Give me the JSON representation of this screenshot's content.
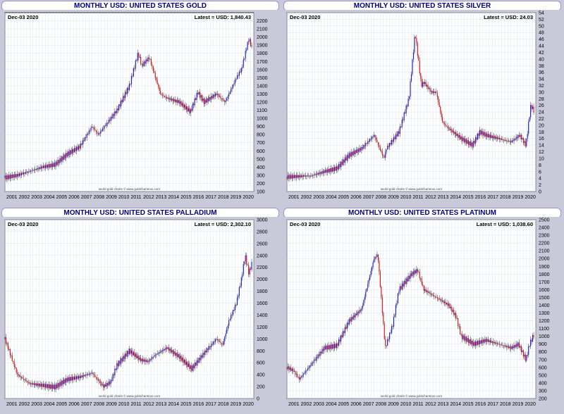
{
  "date_label": "Dec-03  2020",
  "credit": "world gold charts © www.goldchartsrus.com",
  "colors": {
    "up": "#1f1fd6",
    "down": "#e01414",
    "wick": "#333333",
    "grid": "#dde4f2",
    "title": "#000080"
  },
  "chart_data": [
    {
      "type": "line",
      "title": "MONTHLY USD: UNITED STATES GOLD",
      "latest": "Latest = USD: 1,840.43",
      "x_ticks": [
        "2001",
        "2002",
        "2003",
        "2004",
        "2005",
        "2006",
        "2007",
        "2008",
        "2009",
        "2010",
        "2011",
        "2012",
        "2013",
        "2014",
        "2015",
        "2016",
        "2017",
        "2018",
        "2019",
        "2020"
      ],
      "xlim": [
        2001,
        2021
      ],
      "ylim": [
        100,
        2300
      ],
      "y_ticks": [
        100,
        200,
        300,
        400,
        500,
        600,
        700,
        800,
        900,
        1000,
        1100,
        1200,
        1300,
        1400,
        1500,
        1600,
        1700,
        1800,
        1900,
        2000,
        2100,
        2200
      ],
      "x": [
        2001,
        2002,
        2003,
        2004,
        2005,
        2006,
        2007,
        2008,
        2008.5,
        2009,
        2010,
        2011,
        2011.7,
        2012,
        2012.6,
        2013,
        2013.5,
        2014,
        2015,
        2015.9,
        2016.5,
        2017,
        2018,
        2018.7,
        2019,
        2019.6,
        2020,
        2020.6,
        2020.9
      ],
      "values": [
        270,
        300,
        350,
        400,
        430,
        560,
        650,
        900,
        800,
        900,
        1100,
        1400,
        1800,
        1650,
        1750,
        1550,
        1300,
        1250,
        1200,
        1080,
        1320,
        1200,
        1300,
        1200,
        1300,
        1500,
        1600,
        1980,
        1840
      ]
    },
    {
      "type": "line",
      "title": "MONTHLY USD: UNITED STATES SILVER",
      "latest": "Latest = USD: 24.03",
      "x_ticks": [
        "2001",
        "2002",
        "2003",
        "2004",
        "2005",
        "2006",
        "2007",
        "2008",
        "2009",
        "2010",
        "2011",
        "2012",
        "2013",
        "2014",
        "2015",
        "2016",
        "2017",
        "2018",
        "2019",
        "2020"
      ],
      "xlim": [
        2001,
        2021
      ],
      "ylim": [
        0,
        54
      ],
      "y_ticks": [
        0,
        2,
        4,
        6,
        8,
        10,
        12,
        14,
        16,
        18,
        20,
        22,
        24,
        26,
        28,
        30,
        32,
        34,
        36,
        38,
        40,
        42,
        44,
        46,
        48,
        50,
        52,
        54
      ],
      "x": [
        2001,
        2002,
        2003,
        2004,
        2005,
        2006,
        2007,
        2008,
        2008.8,
        2009,
        2010,
        2010.8,
        2011.3,
        2011.8,
        2012,
        2012.6,
        2013,
        2013.5,
        2014,
        2015,
        2015.9,
        2016.5,
        2017,
        2018,
        2019,
        2019.7,
        2020.2,
        2020.6,
        2020.9
      ],
      "values": [
        4.4,
        4.6,
        4.8,
        6,
        7,
        11,
        13,
        17,
        10,
        13,
        18,
        28,
        48,
        32,
        33,
        30,
        30,
        21,
        19,
        16,
        14,
        18,
        17,
        16,
        15,
        17,
        14,
        26,
        24
      ]
    },
    {
      "type": "line",
      "title": "MONTHLY USD: UNITED STATES PALLADIUM",
      "latest": "Latest = USD: 2,302.10",
      "x_ticks": [
        "2001",
        "2002",
        "2003",
        "2004",
        "2005",
        "2006",
        "2007",
        "2008",
        "2009",
        "2010",
        "2011",
        "2012",
        "2013",
        "2014",
        "2015",
        "2016",
        "2017",
        "2018",
        "2019",
        "2020"
      ],
      "xlim": [
        2001,
        2021
      ],
      "ylim": [
        0,
        3000
      ],
      "y_ticks": [
        0,
        200,
        400,
        600,
        800,
        1000,
        1200,
        1400,
        1600,
        1800,
        2000,
        2200,
        2400,
        2600,
        2800,
        3000
      ],
      "x": [
        2001,
        2001.5,
        2002,
        2003,
        2004,
        2005,
        2006,
        2007,
        2008,
        2008.9,
        2009.5,
        2010,
        2011,
        2011.9,
        2012.5,
        2013,
        2014,
        2015,
        2016,
        2017,
        2018,
        2018.5,
        2019,
        2019.6,
        2020,
        2020.3,
        2020.6,
        2020.9
      ],
      "values": [
        1000,
        700,
        400,
        250,
        220,
        190,
        320,
        360,
        430,
        200,
        280,
        560,
        800,
        650,
        620,
        720,
        850,
        700,
        500,
        760,
        1000,
        900,
        1300,
        1600,
        2000,
        2400,
        2100,
        2300
      ]
    },
    {
      "type": "line",
      "title": "MONTHLY USD: UNITED STATES PLATINUM",
      "latest": "Latest = USD: 1,038.60",
      "x_ticks": [
        "2001",
        "2002",
        "2003",
        "2004",
        "2005",
        "2006",
        "2007",
        "2008",
        "2009",
        "2010",
        "2011",
        "2012",
        "2013",
        "2014",
        "2015",
        "2016",
        "2017",
        "2018",
        "2019",
        "2020"
      ],
      "xlim": [
        2001,
        2021
      ],
      "ylim": [
        200,
        2500
      ],
      "y_ticks": [
        200,
        300,
        400,
        500,
        600,
        700,
        800,
        900,
        1000,
        1100,
        1200,
        1300,
        1400,
        1500,
        1600,
        1700,
        1800,
        1900,
        2000,
        2100,
        2200,
        2300,
        2400,
        2500
      ],
      "x": [
        2001,
        2001.5,
        2002,
        2003,
        2004,
        2005,
        2006,
        2007,
        2008,
        2008.3,
        2008.9,
        2009.5,
        2010,
        2011,
        2011.5,
        2012,
        2013,
        2014,
        2014.6,
        2015,
        2016,
        2017,
        2018,
        2019,
        2019.6,
        2020.2,
        2020.5,
        2020.9
      ],
      "values": [
        600,
        560,
        450,
        650,
        850,
        880,
        1200,
        1350,
        2000,
        2050,
        850,
        1150,
        1600,
        1800,
        1850,
        1600,
        1500,
        1400,
        1250,
        1000,
        900,
        950,
        900,
        850,
        900,
        700,
        900,
        1040
      ]
    }
  ]
}
